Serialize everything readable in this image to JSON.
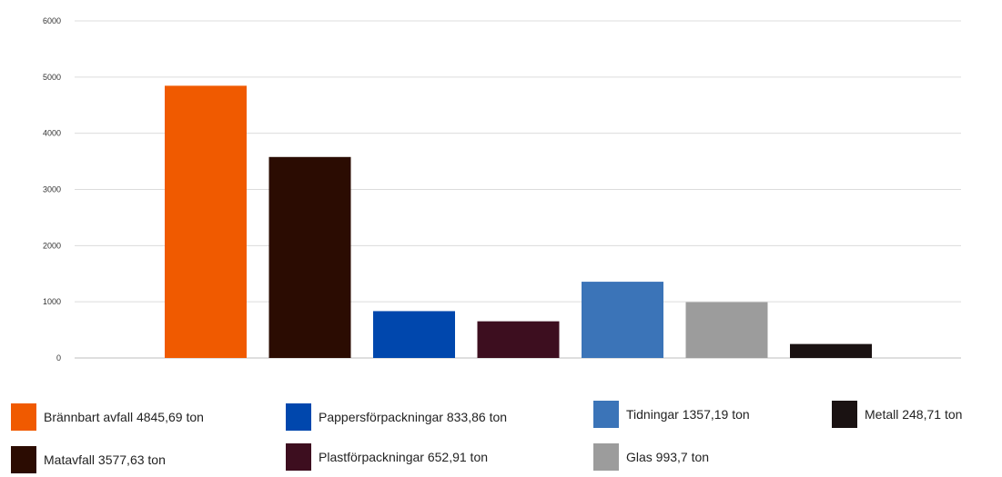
{
  "chart_data": {
    "type": "bar",
    "title": "",
    "xlabel": "",
    "ylabel": "",
    "ylim": [
      0,
      6000
    ],
    "yticks": [
      0,
      1000,
      2000,
      3000,
      4000,
      5000,
      6000
    ],
    "grid": true,
    "legend_position": "bottom",
    "categories": [
      "Brännbart avfall",
      "Matavfall",
      "Pappersförpackningar",
      "Plastförpackningar",
      "Tidningar",
      "Glas",
      "Metall"
    ],
    "values": [
      4845.69,
      3577.63,
      833.86,
      652.91,
      1357.19,
      993.7,
      248.71
    ],
    "colors": [
      "#f05a00",
      "#2b0c02",
      "#0047ad",
      "#3d0e1f",
      "#3b74b8",
      "#9c9c9c",
      "#1a1212"
    ],
    "legend": [
      "Brännbart avfall 4845,69 ton",
      "Matavfall 3577,63 ton",
      "Pappersförpackningar 833,86 ton",
      "Plastförpackningar 652,91 ton",
      "Tidningar 1357,19 ton",
      "Glas 993,7 ton",
      "Metall 248,71 ton"
    ]
  }
}
